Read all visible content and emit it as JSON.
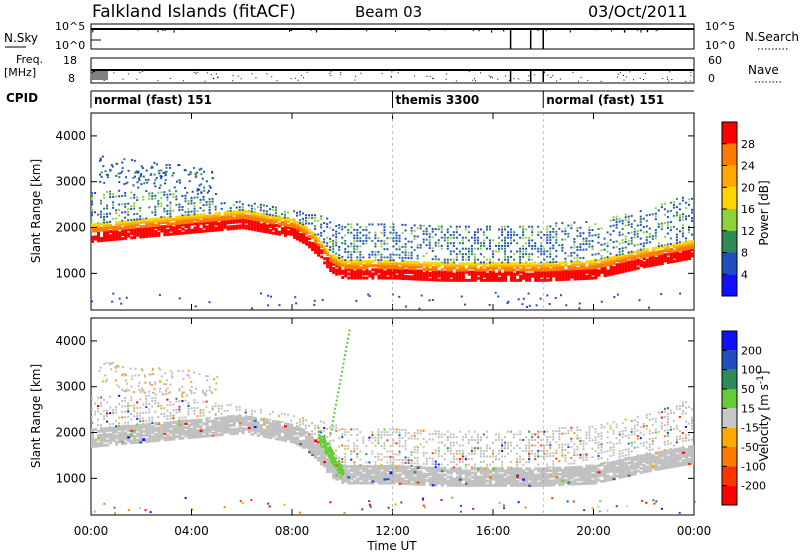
{
  "header": {
    "station": "Falkland Islands (fitACF)",
    "beam": "Beam 03",
    "date": "03/Oct/2011"
  },
  "strips": {
    "nsky": {
      "label": "N.Sky",
      "right_label": "N.Search",
      "left_ticks": [
        "10^5",
        "10^0"
      ],
      "right_ticks": [
        "10^5",
        "10^0"
      ]
    },
    "freq": {
      "label": "Freq.",
      "unit": "[MHz]",
      "right_label": "Nave",
      "left_ticks": [
        "18",
        "8"
      ],
      "right_ticks": [
        "60",
        "0"
      ]
    },
    "cpid": {
      "label": "CPID",
      "segments": [
        {
          "start_hour": 0,
          "label": "normal (fast) 151"
        },
        {
          "start_hour": 12,
          "label": "themis 3300"
        },
        {
          "start_hour": 18,
          "label": "normal (fast) 151"
        }
      ]
    }
  },
  "chart_data": [
    {
      "type": "heatmap",
      "name": "power-panel",
      "ylabel": "Slant Range [km]",
      "xlabel": "Time UT",
      "xlim_hours": [
        0,
        24
      ],
      "ylim_km": [
        200,
        4500
      ],
      "y_ticks": [
        1000,
        2000,
        3000,
        4000
      ],
      "x_tick_labels": [
        "00:00",
        "04:00",
        "08:00",
        "12:00",
        "16:00",
        "20:00",
        "00:00"
      ],
      "x_tick_hours": [
        0,
        4,
        8,
        12,
        16,
        20,
        24
      ],
      "colorbar": {
        "label": "Power [dB]",
        "tick_labels": [
          "28",
          "24",
          "20",
          "16",
          "12",
          "8",
          "4"
        ],
        "colors": [
          "#ff0000",
          "#ff7a00",
          "#ffaa00",
          "#ffd400",
          "#8fd23a",
          "#2e8b57",
          "#1f4fbf",
          "#1010ff"
        ]
      },
      "echo_band": {
        "hours": [
          0,
          2,
          4,
          6,
          7,
          8,
          8.5,
          9,
          9.5,
          10,
          12,
          14,
          15,
          16,
          18,
          20,
          22,
          24
        ],
        "main_range_km": [
          1850,
          1950,
          2050,
          2150,
          2050,
          1950,
          1800,
          1550,
          1200,
          1050,
          1050,
          1000,
          1000,
          1000,
          1000,
          1050,
          1300,
          1500
        ],
        "outer_range_km": [
          2800,
          2850,
          2750,
          2600,
          2500,
          2400,
          2350,
          2300,
          2200,
          2150,
          2100,
          2100,
          2050,
          2050,
          2100,
          2200,
          2400,
          2800
        ]
      },
      "upper_echo": {
        "hours": [
          0.3,
          5
        ],
        "range_km": [
          3000,
          3600
        ]
      }
    },
    {
      "type": "heatmap",
      "name": "velocity-panel",
      "ylabel": "Slant Range [km]",
      "xlabel": "Time UT",
      "xlim_hours": [
        0,
        24
      ],
      "ylim_km": [
        200,
        4500
      ],
      "y_ticks": [
        1000,
        2000,
        3000,
        4000
      ],
      "x_tick_labels": [
        "00:00",
        "04:00",
        "08:00",
        "12:00",
        "16:00",
        "20:00",
        "00:00"
      ],
      "x_tick_hours": [
        0,
        4,
        8,
        12,
        16,
        20,
        24
      ],
      "colorbar": {
        "label": "Velocity [m s",
        "label_superscript": "-1",
        "label_close": "]",
        "tick_labels": [
          "200",
          "100",
          "50",
          "15",
          "-15",
          "-50",
          "-100",
          "-200"
        ],
        "colors": [
          "#1010ff",
          "#1f4fbf",
          "#2e8b57",
          "#66cc33",
          "#c8c8c8",
          "#ffaa00",
          "#ff7a00",
          "#ff3300",
          "#ff0000"
        ]
      },
      "ground_scatter_color": "#c0c0c0",
      "green_feature": {
        "hours": [
          9,
          10
        ],
        "range_km": [
          1000,
          2000
        ]
      }
    }
  ],
  "time_axis": {
    "label": "Time UT",
    "hours": [
      0,
      4,
      8,
      12,
      16,
      20,
      24
    ],
    "labels": [
      "00:00",
      "04:00",
      "08:00",
      "12:00",
      "16:00",
      "20:00",
      "00:00"
    ]
  }
}
